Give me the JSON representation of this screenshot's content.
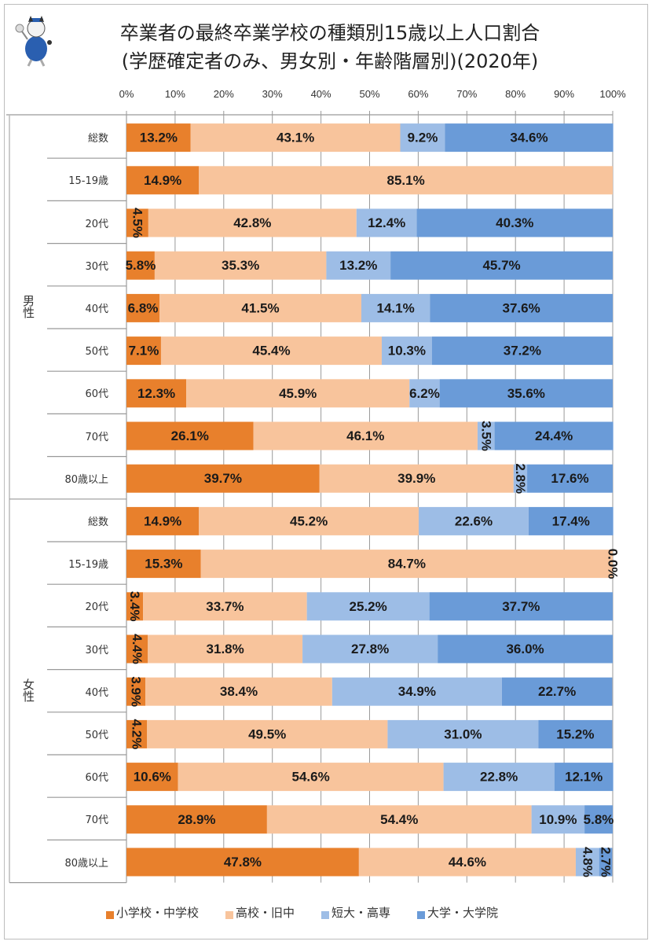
{
  "chart_data": {
    "type": "bar",
    "orientation": "horizontal-stacked-100",
    "title": "卒業者の最終卒業学校の種類別15歳以上人口割合",
    "subtitle": "(学歴確定者のみ、男女別・年齢階層別)(2020年)",
    "xlabel": "",
    "ylabel": "",
    "xlim": [
      0,
      100
    ],
    "x_ticks": [
      "0%",
      "10%",
      "20%",
      "30%",
      "40%",
      "50%",
      "60%",
      "70%",
      "80%",
      "90%",
      "100%"
    ],
    "grid": true,
    "legend_position": "bottom",
    "groups": [
      {
        "name": "男性",
        "categories": [
          "総数",
          "15-19歳",
          "20代",
          "30代",
          "40代",
          "50代",
          "60代",
          "70代",
          "80歳以上"
        ]
      },
      {
        "name": "女性",
        "categories": [
          "総数",
          "15-19歳",
          "20代",
          "30代",
          "40代",
          "50代",
          "60代",
          "70代",
          "80歳以上"
        ]
      }
    ],
    "series": [
      {
        "name": "小学校・中学校",
        "color": "#e8802c",
        "values": [
          13.2,
          14.9,
          4.5,
          5.8,
          6.8,
          7.1,
          12.3,
          26.1,
          39.7,
          14.9,
          15.3,
          3.4,
          4.4,
          3.9,
          4.2,
          10.6,
          28.9,
          47.8
        ]
      },
      {
        "name": "高校・旧中",
        "color": "#f8c49c",
        "values": [
          43.1,
          85.1,
          42.8,
          35.3,
          41.5,
          45.4,
          45.9,
          46.1,
          39.9,
          45.2,
          84.7,
          33.7,
          31.8,
          38.4,
          49.5,
          54.6,
          54.4,
          44.6
        ]
      },
      {
        "name": "短大・高専",
        "color": "#9dbde6",
        "values": [
          9.2,
          null,
          12.4,
          13.2,
          14.1,
          10.3,
          6.2,
          3.5,
          2.8,
          22.6,
          0.0,
          25.2,
          27.8,
          34.9,
          31.0,
          22.8,
          10.9,
          4.8
        ]
      },
      {
        "name": "大学・大学院",
        "color": "#6a9bd8",
        "values": [
          34.6,
          null,
          40.3,
          45.7,
          37.6,
          37.2,
          35.6,
          24.4,
          17.6,
          17.4,
          null,
          37.7,
          36.0,
          22.7,
          15.2,
          12.1,
          5.8,
          2.7
        ]
      }
    ],
    "rotated_labels": [
      {
        "row": 2,
        "series": 0
      },
      {
        "row": 7,
        "series": 2
      },
      {
        "row": 8,
        "series": 2
      },
      {
        "row": 10,
        "series": 2
      },
      {
        "row": 11,
        "series": 0
      },
      {
        "row": 12,
        "series": 0
      },
      {
        "row": 13,
        "series": 0
      },
      {
        "row": 14,
        "series": 0
      },
      {
        "row": 17,
        "series": 2
      },
      {
        "row": 17,
        "series": 3
      }
    ]
  },
  "mascot": {
    "icon": "cat-mascot-icon"
  }
}
